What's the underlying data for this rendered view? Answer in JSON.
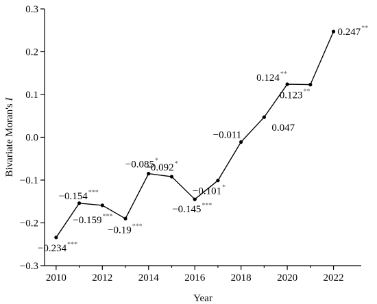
{
  "chart_data": {
    "type": "line",
    "title": "",
    "xlabel": "Year",
    "ylabel_text": "Bivariate Moran's ",
    "ylabel_italic": "I",
    "xlim": [
      2009.5,
      2023.2
    ],
    "ylim": [
      -0.3,
      0.3
    ],
    "xticks": [
      2010,
      2012,
      2014,
      2016,
      2018,
      2020,
      2022
    ],
    "xtick_labels": [
      "2010",
      "2012",
      "2014",
      "2016",
      "2018",
      "2020",
      "2022"
    ],
    "yticks": [
      -0.3,
      -0.2,
      -0.1,
      0.0,
      0.1,
      0.2,
      0.3
    ],
    "ytick_labels": [
      "−0.3",
      "−0.2",
      "−0.1",
      "0.0",
      "0.1",
      "0.2",
      "0.3"
    ],
    "grid": false,
    "legend": "none",
    "series": [
      {
        "x": [
          2010,
          2011,
          2012,
          2013,
          2014,
          2015,
          2016,
          2017,
          2018,
          2019,
          2020,
          2021,
          2022
        ],
        "values": [
          -0.234,
          -0.154,
          -0.159,
          -0.19,
          -0.085,
          -0.092,
          -0.145,
          -0.101,
          -0.011,
          0.047,
          0.124,
          0.123,
          0.247
        ],
        "labels": [
          "−0.234",
          "−0.154",
          "−0.159",
          "−0.19",
          "−0.085",
          "−0.092",
          "−0.145",
          "−0.101",
          "−0.011",
          "0.047",
          "0.124",
          "0.123",
          "0.247"
        ],
        "significance": [
          "***",
          "***",
          "***",
          "***",
          "*",
          "*",
          "***",
          "*",
          "",
          "",
          "**",
          "**",
          "**"
        ]
      }
    ]
  }
}
